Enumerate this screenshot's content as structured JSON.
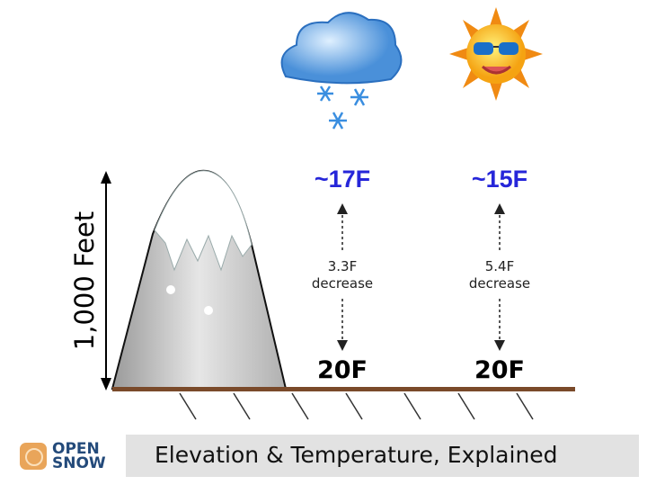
{
  "axis_label": "1,000 Feet",
  "columns": [
    {
      "weather_icon": "snow-cloud-icon",
      "top_temp": "~17F",
      "change_value": "3.3F",
      "change_label": "decrease",
      "base_temp": "20F"
    },
    {
      "weather_icon": "sun-with-sunglasses-icon",
      "top_temp": "~15F",
      "change_value": "5.4F",
      "change_label": "decrease",
      "base_temp": "20F"
    }
  ],
  "footer": {
    "logo_line1": "OPEN",
    "logo_line2": "SNOW",
    "title": "Elevation & Temperature, Explained"
  },
  "colors": {
    "top_temp": "#2626d9",
    "ground": "#7a4a2a",
    "logo": "#e9a55a"
  }
}
